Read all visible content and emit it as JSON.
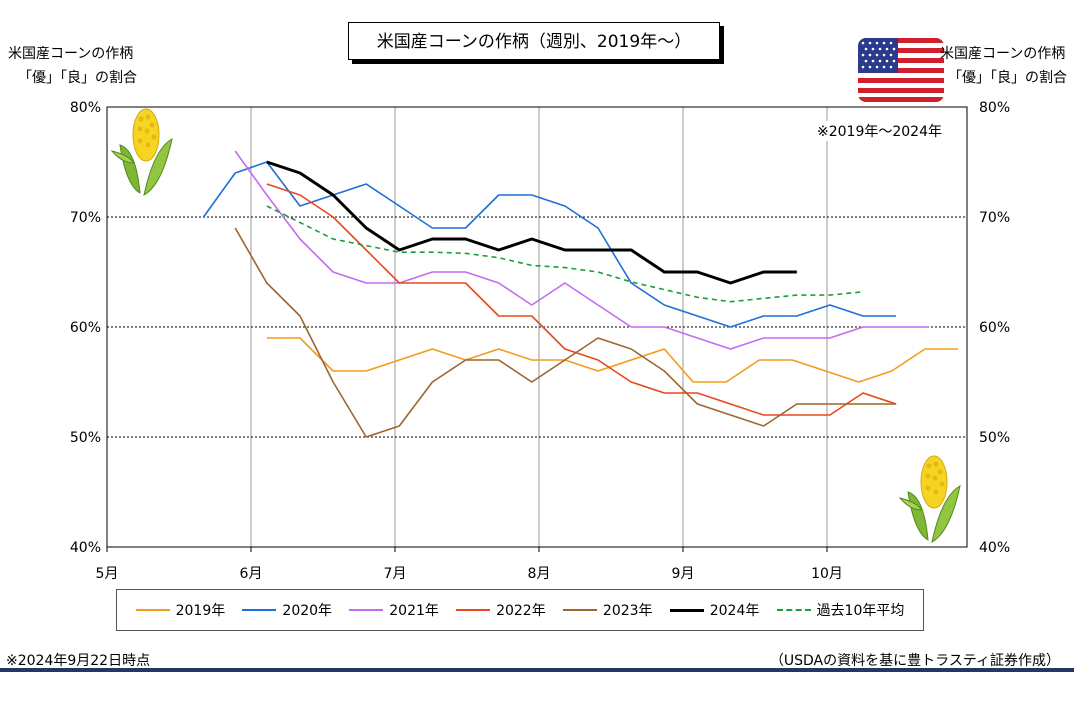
{
  "title": "米国産コーンの作柄（週別、2019年～）",
  "left_axis_caption": [
    "米国産コーンの作柄",
    "「優」「良」の割合"
  ],
  "right_axis_caption": [
    "米国産コーンの作柄",
    "「優」「良」の割合"
  ],
  "note_range": "※2019年～2024年",
  "footnote_left": "※2024年9月22日時点",
  "footnote_right": "（USDAの資料を基に豊トラスティ証券作成）",
  "icons": {
    "flag": "us-flag-icon",
    "corn": "corn-icon"
  },
  "chart_data": {
    "type": "line",
    "title": "米国産コーンの作柄（週別、2019年～）",
    "x_unit": "month (fractional, 5 = start of May)",
    "xlim": [
      5,
      11
    ],
    "x_tick_labels": [
      {
        "x": 5,
        "label": "5月"
      },
      {
        "x": 6,
        "label": "6月"
      },
      {
        "x": 7,
        "label": "7月"
      },
      {
        "x": 8,
        "label": "8月"
      },
      {
        "x": 9,
        "label": "9月"
      },
      {
        "x": 10,
        "label": "10月"
      }
    ],
    "ylim": [
      40,
      80
    ],
    "y_ticks": [
      40,
      50,
      60,
      70,
      80
    ],
    "y_tick_labels": [
      "40%",
      "50%",
      "60%",
      "70%",
      "80%"
    ],
    "grid": "horizontal dotted at 50/60/70, vertical solid at month starts",
    "legend_position": "bottom",
    "series": [
      {
        "name": "2019年",
        "color": "#f39c1b",
        "dash": "solid",
        "width": 1.6,
        "points": [
          [
            6.11,
            59
          ],
          [
            6.34,
            59
          ],
          [
            6.57,
            56
          ],
          [
            6.8,
            56
          ],
          [
            7.03,
            57
          ],
          [
            7.26,
            58
          ],
          [
            7.49,
            57
          ],
          [
            7.72,
            58
          ],
          [
            7.95,
            57
          ],
          [
            8.18,
            57
          ],
          [
            8.41,
            56
          ],
          [
            8.64,
            57
          ],
          [
            8.87,
            58
          ],
          [
            9.07,
            55
          ],
          [
            9.3,
            55
          ],
          [
            9.53,
            57
          ],
          [
            9.76,
            57
          ],
          [
            9.99,
            56
          ],
          [
            10.22,
            55
          ],
          [
            10.45,
            56
          ],
          [
            10.68,
            58
          ],
          [
            10.91,
            58
          ]
        ]
      },
      {
        "name": "2020年",
        "color": "#1e6fd9",
        "dash": "solid",
        "width": 1.6,
        "points": [
          [
            5.67,
            70
          ],
          [
            5.89,
            74
          ],
          [
            6.11,
            75
          ],
          [
            6.34,
            71
          ],
          [
            6.57,
            72
          ],
          [
            6.8,
            73
          ],
          [
            7.03,
            71
          ],
          [
            7.26,
            69
          ],
          [
            7.49,
            69
          ],
          [
            7.72,
            72
          ],
          [
            7.95,
            72
          ],
          [
            8.18,
            71
          ],
          [
            8.41,
            69
          ],
          [
            8.64,
            64
          ],
          [
            8.87,
            62
          ],
          [
            9.1,
            61
          ],
          [
            9.33,
            60
          ],
          [
            9.56,
            61
          ],
          [
            9.79,
            61
          ],
          [
            10.02,
            62
          ],
          [
            10.25,
            61
          ],
          [
            10.48,
            61
          ]
        ]
      },
      {
        "name": "2021年",
        "color": "#c36cf0",
        "dash": "solid",
        "width": 1.6,
        "points": [
          [
            5.89,
            76
          ],
          [
            6.11,
            72
          ],
          [
            6.34,
            68
          ],
          [
            6.57,
            65
          ],
          [
            6.8,
            64
          ],
          [
            7.03,
            64
          ],
          [
            7.26,
            65
          ],
          [
            7.49,
            65
          ],
          [
            7.72,
            64
          ],
          [
            7.95,
            62
          ],
          [
            8.18,
            64
          ],
          [
            8.41,
            62
          ],
          [
            8.64,
            60
          ],
          [
            8.87,
            60
          ],
          [
            9.1,
            59
          ],
          [
            9.33,
            58
          ],
          [
            9.56,
            59
          ],
          [
            9.79,
            59
          ],
          [
            10.02,
            59
          ],
          [
            10.25,
            60
          ],
          [
            10.48,
            60
          ],
          [
            10.71,
            60
          ]
        ]
      },
      {
        "name": "2022年",
        "color": "#e8481c",
        "dash": "solid",
        "width": 1.6,
        "points": [
          [
            6.11,
            73
          ],
          [
            6.34,
            72
          ],
          [
            6.57,
            70
          ],
          [
            6.8,
            67
          ],
          [
            7.03,
            64
          ],
          [
            7.26,
            64
          ],
          [
            7.49,
            64
          ],
          [
            7.72,
            61
          ],
          [
            7.95,
            61
          ],
          [
            8.18,
            58
          ],
          [
            8.41,
            57
          ],
          [
            8.64,
            55
          ],
          [
            8.87,
            54
          ],
          [
            9.1,
            54
          ],
          [
            9.33,
            53
          ],
          [
            9.56,
            52
          ],
          [
            9.79,
            52
          ],
          [
            10.02,
            52
          ],
          [
            10.25,
            54
          ],
          [
            10.48,
            53
          ]
        ]
      },
      {
        "name": "2023年",
        "color": "#9c6630",
        "dash": "solid",
        "width": 1.6,
        "points": [
          [
            5.89,
            69
          ],
          [
            6.11,
            64
          ],
          [
            6.34,
            61
          ],
          [
            6.57,
            55
          ],
          [
            6.8,
            50
          ],
          [
            7.03,
            51
          ],
          [
            7.26,
            55
          ],
          [
            7.49,
            57
          ],
          [
            7.72,
            57
          ],
          [
            7.95,
            55
          ],
          [
            8.18,
            57
          ],
          [
            8.41,
            59
          ],
          [
            8.64,
            58
          ],
          [
            8.87,
            56
          ],
          [
            9.1,
            53
          ],
          [
            9.33,
            52
          ],
          [
            9.56,
            51
          ],
          [
            9.79,
            53
          ],
          [
            10.02,
            53
          ],
          [
            10.25,
            53
          ],
          [
            10.48,
            53
          ]
        ]
      },
      {
        "name": "2024年",
        "color": "#000000",
        "dash": "solid",
        "width": 3,
        "points": [
          [
            6.11,
            75
          ],
          [
            6.34,
            74
          ],
          [
            6.57,
            72
          ],
          [
            6.8,
            69
          ],
          [
            7.03,
            67
          ],
          [
            7.26,
            68
          ],
          [
            7.49,
            68
          ],
          [
            7.72,
            67
          ],
          [
            7.95,
            68
          ],
          [
            8.18,
            67
          ],
          [
            8.41,
            67
          ],
          [
            8.64,
            67
          ],
          [
            8.87,
            65
          ],
          [
            9.1,
            65
          ],
          [
            9.33,
            64
          ],
          [
            9.56,
            65
          ],
          [
            9.79,
            65
          ]
        ]
      },
      {
        "name": "過去10年平均",
        "color": "#1a9e3f",
        "dash": "5,4",
        "width": 1.6,
        "points": [
          [
            6.11,
            71
          ],
          [
            6.34,
            69.5
          ],
          [
            6.57,
            68
          ],
          [
            6.8,
            67.4
          ],
          [
            7.03,
            66.8
          ],
          [
            7.26,
            66.8
          ],
          [
            7.49,
            66.7
          ],
          [
            7.72,
            66.3
          ],
          [
            7.95,
            65.6
          ],
          [
            8.18,
            65.4
          ],
          [
            8.41,
            65
          ],
          [
            8.64,
            64.1
          ],
          [
            8.87,
            63.4
          ],
          [
            9.1,
            62.7
          ],
          [
            9.33,
            62.3
          ],
          [
            9.56,
            62.6
          ],
          [
            9.79,
            62.9
          ],
          [
            10.02,
            62.9
          ],
          [
            10.25,
            63.2
          ]
        ]
      }
    ]
  }
}
